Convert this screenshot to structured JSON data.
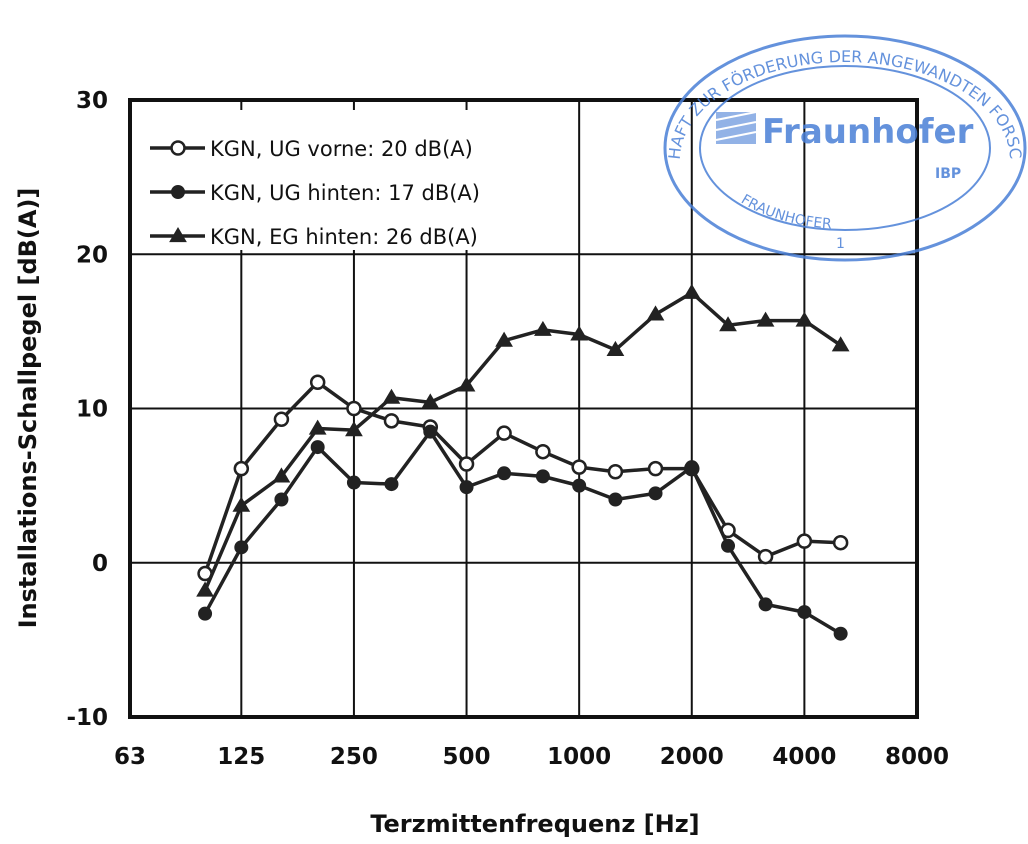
{
  "chart_data": {
    "type": "line",
    "xlabel": "Terzmittenfrequenz [Hz]",
    "ylabel": "Installations-Schallpegel [dB(A)]",
    "x_scale": "log2",
    "xlim": [
      63,
      8000
    ],
    "ylim": [
      -10,
      30
    ],
    "x_ticks": [
      "63",
      "125",
      "250",
      "500",
      "1000",
      "2000",
      "4000",
      "8000"
    ],
    "y_ticks": [
      "-10",
      "0",
      "10",
      "20",
      "30"
    ],
    "grid": true,
    "legend_position": "top-left",
    "x": [
      100,
      125,
      160,
      200,
      250,
      315,
      400,
      500,
      630,
      800,
      1000,
      1250,
      1600,
      2000,
      2500,
      3150,
      4000,
      5000
    ],
    "series": [
      {
        "name": "KGN, UG vorne: 20 dB(A)",
        "marker": "open-circle",
        "values": [
          -0.7,
          6.1,
          9.3,
          11.7,
          10.0,
          9.2,
          8.8,
          6.4,
          8.4,
          7.2,
          6.2,
          5.9,
          6.1,
          6.1,
          2.1,
          0.4,
          1.4,
          1.3
        ]
      },
      {
        "name": "KGN, UG hinten: 17 dB(A)",
        "marker": "filled-circle",
        "values": [
          -3.3,
          1.0,
          4.1,
          7.5,
          5.2,
          5.1,
          8.5,
          4.9,
          5.8,
          5.6,
          5.0,
          4.1,
          4.5,
          6.2,
          1.1,
          -2.7,
          -3.2,
          -4.6
        ]
      },
      {
        "name": "KGN, EG hinten: 26 dB(A)",
        "marker": "filled-triangle",
        "values": [
          -1.8,
          3.7,
          5.6,
          8.7,
          8.6,
          10.7,
          10.4,
          11.5,
          14.4,
          15.1,
          14.8,
          13.8,
          16.1,
          17.5,
          15.4,
          15.7,
          15.7,
          14.1
        ]
      }
    ],
    "line_color": "#222222"
  },
  "stamp": {
    "top_text": "GESELLSCHAFT ZUR FÖRDERUNG DER ANGEWANDTEN FORSCHUNG E.V.",
    "bottom_text": "FRAUNHOFER",
    "brand": "Fraunhofer",
    "sub": "IBP",
    "number": "1",
    "color": "#4a7fd6"
  }
}
